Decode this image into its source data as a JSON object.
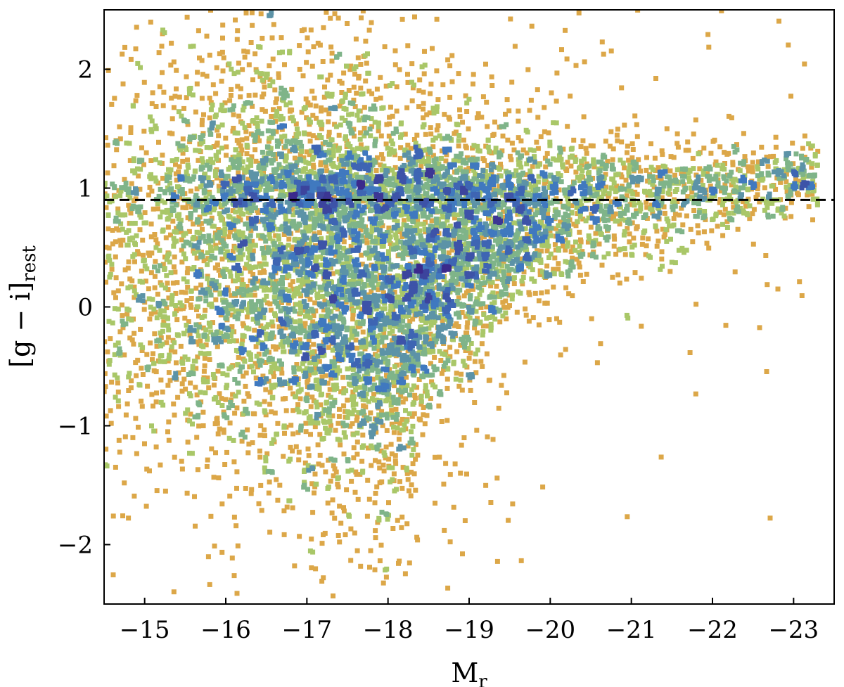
{
  "chart_data": {
    "type": "heatmap",
    "title": "",
    "xlabel": "M",
    "xlabel_sub": "r",
    "ylabel": "[g − i]",
    "ylabel_sub": "rest",
    "xlim": [
      -14.5,
      -23.5
    ],
    "ylim": [
      -2.5,
      2.5
    ],
    "x_axis_inverted": true,
    "xticks": [
      -15,
      -16,
      -17,
      -18,
      -19,
      -20,
      -21,
      -22,
      -23
    ],
    "xtick_labels": [
      "−15",
      "−16",
      "−17",
      "−18",
      "−19",
      "−20",
      "−21",
      "−22",
      "−23"
    ],
    "yticks": [
      2,
      1,
      0,
      -1,
      -2
    ],
    "ytick_labels": [
      "2",
      "1",
      "0",
      "−1",
      "−2"
    ],
    "grid": false,
    "legend": "none",
    "colormap": "Spectral (red = low density, blue/purple = high density)",
    "colors": {
      "low": "#e03020",
      "midlow": "#e8a040",
      "mid": "#9ccf70",
      "midhigh": "#3f78c0",
      "high": "#3b2a8c"
    },
    "reference_line": {
      "y": 0.9,
      "style": "dashed",
      "color": "#000000"
    },
    "density_ridge": [
      {
        "x": -14.5,
        "y": 0.2
      },
      {
        "x": -15.5,
        "y": 0.35
      },
      {
        "x": -16.5,
        "y": 0.4
      },
      {
        "x": -17.5,
        "y": 0.2
      },
      {
        "x": -18.0,
        "y": -0.05
      },
      {
        "x": -18.5,
        "y": 0.3
      },
      {
        "x": -19.5,
        "y": 0.65
      },
      {
        "x": -20.5,
        "y": 0.85
      },
      {
        "x": -21.5,
        "y": 0.95
      },
      {
        "x": -22.5,
        "y": 1.0
      },
      {
        "x": -23.2,
        "y": 1.05
      }
    ],
    "density_peak": {
      "x": -17.8,
      "y": -0.05
    }
  }
}
